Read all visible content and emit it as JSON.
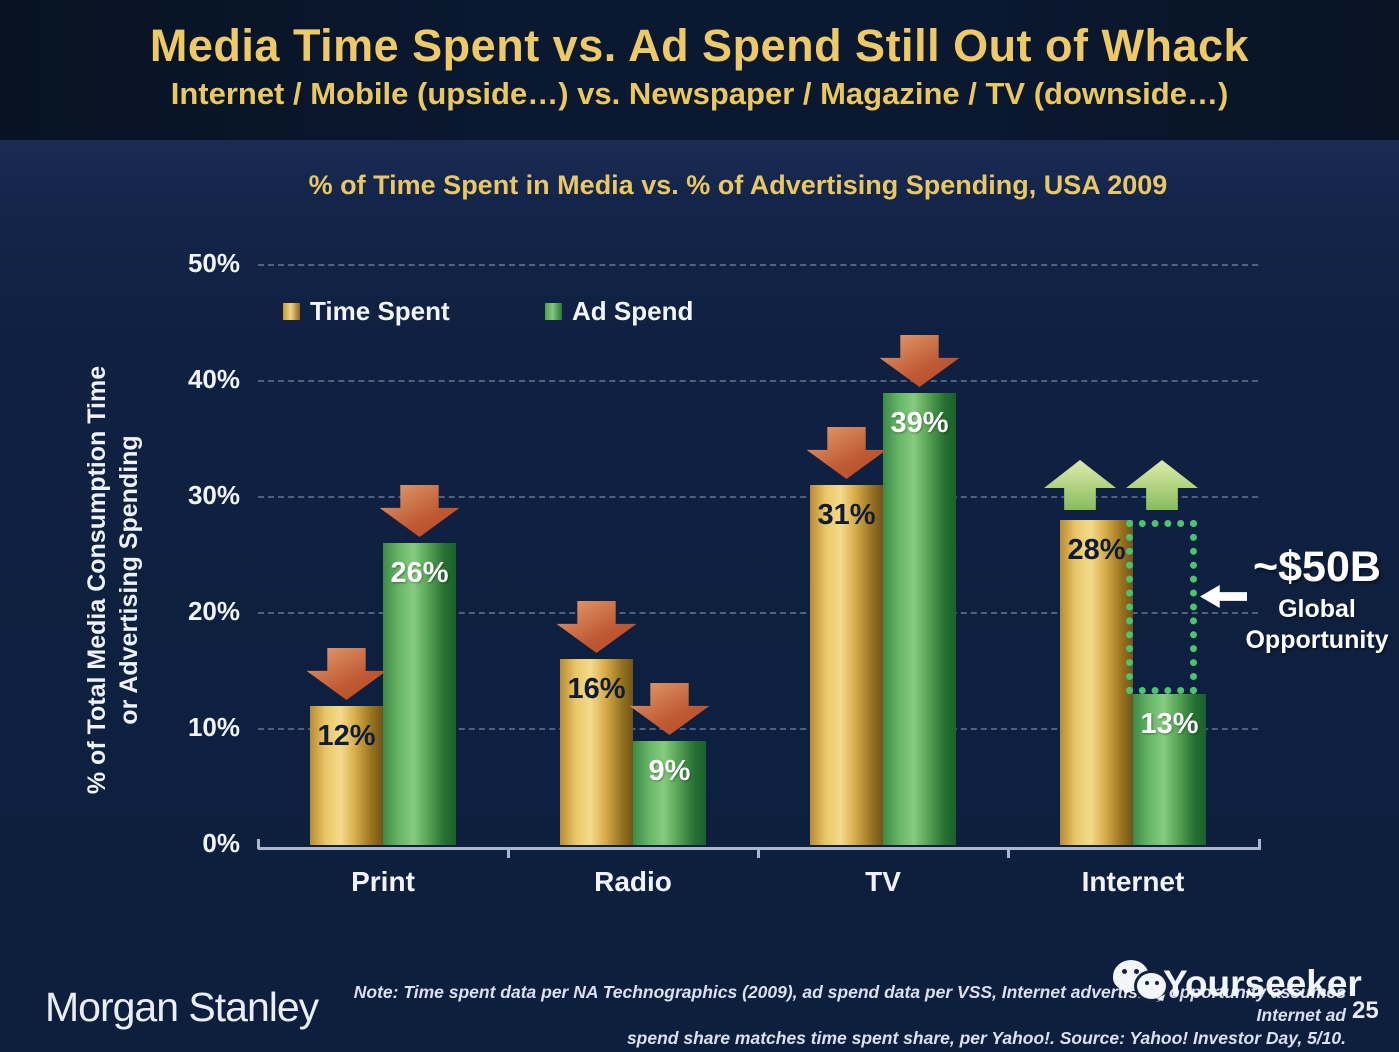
{
  "header": {
    "title": "Media Time Spent vs. Ad Spend Still Out of Whack",
    "subtitle": "Internet / Mobile (upside…) vs. Newspaper / Magazine / TV (downside…)"
  },
  "chart_data": {
    "type": "bar",
    "title": "% of Time Spent in Media vs. % of Advertising Spending, USA 2009",
    "categories": [
      "Print",
      "Radio",
      "TV",
      "Internet"
    ],
    "series": [
      {
        "name": "Time Spent",
        "values": [
          12,
          16,
          31,
          28
        ],
        "labels": [
          "12%",
          "16%",
          "31%",
          "28%"
        ],
        "color": "#e0b54e"
      },
      {
        "name": "Ad Spend",
        "values": [
          26,
          9,
          39,
          13
        ],
        "labels": [
          "26%",
          "9%",
          "39%",
          "13%"
        ],
        "color": "#55a757"
      }
    ],
    "ylabel_line1": "% of Total Media Consumption Time",
    "ylabel_line2": "or Advertising Spending",
    "yticks": [
      "0%",
      "10%",
      "20%",
      "30%",
      "40%",
      "50%"
    ],
    "ylim": [
      0,
      50
    ],
    "grid": "horizontal dashed lines every 10%",
    "legend_position": "top-left inside plot",
    "trend_arrows": {
      "Print": "down",
      "Radio": "down",
      "TV": "down",
      "Internet": "up"
    },
    "gap_annotation": {
      "category": "Internet",
      "from_value": 13,
      "to_value": 28,
      "value": "~$50B",
      "label_line1": "Global",
      "label_line2": "Opportunity"
    }
  },
  "footer": {
    "logo_text": "Morgan Stanley",
    "note_line1": "Note: Time spent data per NA Technographics (2009), ad spend data per VSS, Internet advertising opportunity assumes Internet ad",
    "note_line2": "spend share matches time spent share, per Yahoo!. Source: Yahoo! Investor Day, 5/10.",
    "watermark_text": "Yourseeker",
    "page_number": "25"
  },
  "colors": {
    "accent_gold": "#e9c764",
    "bar_gold": "#e0b54e",
    "bar_green": "#55a757",
    "arrow_red": "#c05a34",
    "arrow_green": "#a9cf77",
    "gap_border": "#4cc46e",
    "background": "#0f2040",
    "header_background": "#0a1830"
  }
}
